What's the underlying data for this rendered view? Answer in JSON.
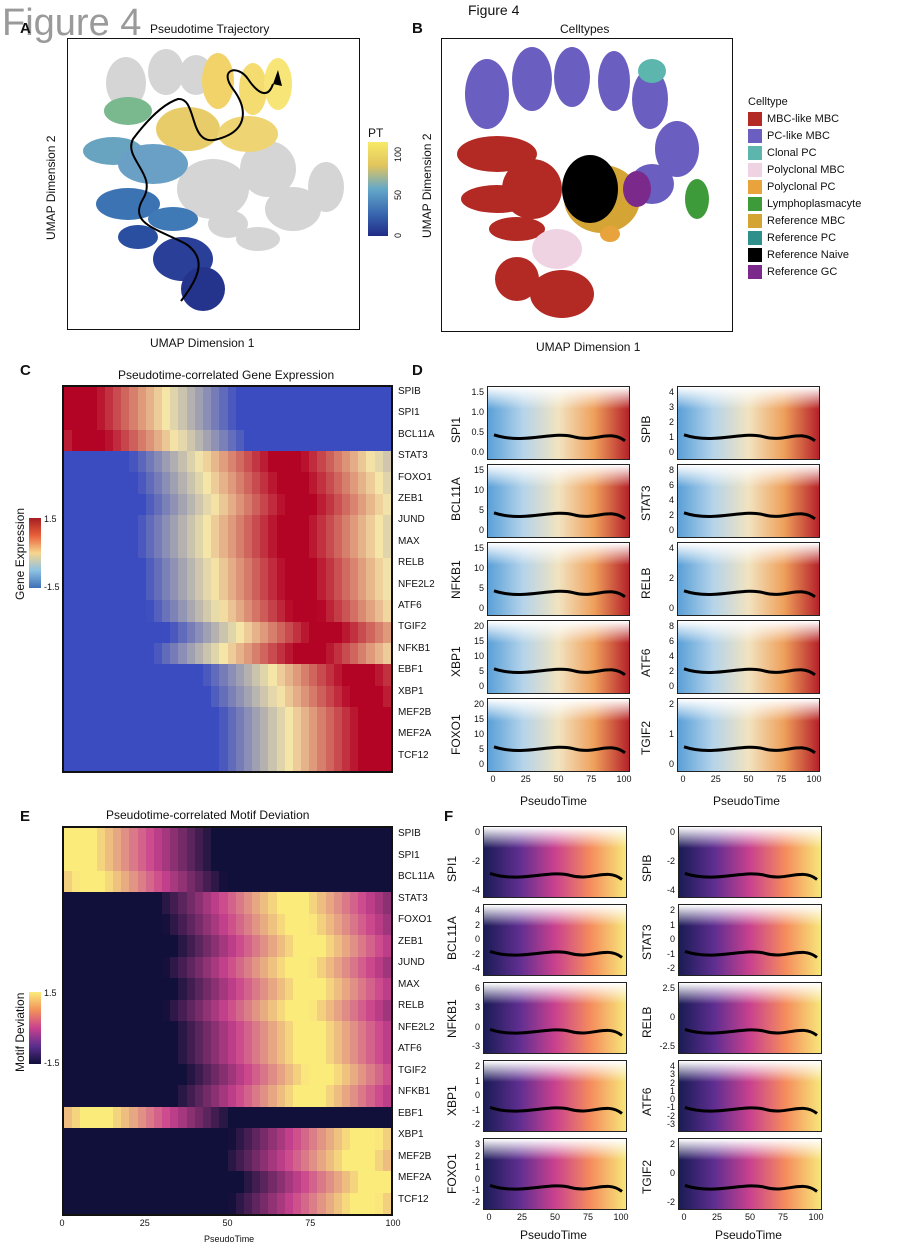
{
  "figure": {
    "watermark": "Figure 4",
    "title": "Figure 4"
  },
  "panel_a": {
    "letter": "A",
    "title": "Pseudotime Trajectory",
    "xlabel": "UMAP Dimension 1",
    "ylabel": "UMAP Dimension 2",
    "colorbar_title": "PT",
    "colorbar_ticks": [
      "100",
      "50",
      "0"
    ]
  },
  "panel_b": {
    "letter": "B",
    "title": "Celltypes",
    "xlabel": "UMAP Dimension 1",
    "ylabel": "UMAP Dimension 2",
    "legend_title": "Celltype",
    "legend": [
      {
        "label": "MBC-like MBC",
        "color": "#b32a24"
      },
      {
        "label": "PC-like MBC",
        "color": "#6a5fc0"
      },
      {
        "label": "Clonal PC",
        "color": "#5db6ad"
      },
      {
        "label": "Polyclonal MBC",
        "color": "#efd3e2"
      },
      {
        "label": "Polyclonal PC",
        "color": "#e8a33c"
      },
      {
        "label": "Lymphoplasmacyte",
        "color": "#3e9b3a"
      },
      {
        "label": "Reference MBC",
        "color": "#d4a534"
      },
      {
        "label": "Reference PC",
        "color": "#2f8f8a"
      },
      {
        "label": "Reference Naive",
        "color": "#000000"
      },
      {
        "label": "Reference GC",
        "color": "#7b2a8c"
      }
    ]
  },
  "panel_c": {
    "letter": "C",
    "title": "Pseudotime-correlated Gene Expression",
    "colorbar_title": "Gene Expression",
    "colorbar_ticks": [
      "1.5",
      "-1.5"
    ],
    "genes": [
      "SPIB",
      "SPI1",
      "BCL11A",
      "STAT3",
      "FOXO1",
      "ZEB1",
      "JUND",
      "MAX",
      "RELB",
      "NFE2L2",
      "ATF6",
      "TGIF2",
      "NFKB1",
      "EBF1",
      "XBP1",
      "MEF2B",
      "MEF2A",
      "TCF12"
    ]
  },
  "panel_d": {
    "letter": "D",
    "xlabel": "PseudoTime",
    "xticks": [
      "0",
      "25",
      "50",
      "75",
      "100"
    ],
    "left_col": [
      {
        "gene": "SPI1",
        "yticks": [
          "1.5",
          "1.0",
          "0.5",
          "0.0"
        ]
      },
      {
        "gene": "BCL11A",
        "yticks": [
          "15",
          "10",
          "5",
          "0"
        ]
      },
      {
        "gene": "NFKB1",
        "yticks": [
          "15",
          "10",
          "5",
          "0"
        ]
      },
      {
        "gene": "XBP1",
        "yticks": [
          "20",
          "15",
          "10",
          "5",
          "0"
        ]
      },
      {
        "gene": "FOXO1",
        "yticks": [
          "20",
          "15",
          "10",
          "5",
          "0"
        ]
      }
    ],
    "right_col": [
      {
        "gene": "SPIB",
        "yticks": [
          "4",
          "3",
          "2",
          "1",
          "0"
        ]
      },
      {
        "gene": "STAT3",
        "yticks": [
          "8",
          "6",
          "4",
          "2",
          "0"
        ]
      },
      {
        "gene": "RELB",
        "yticks": [
          "4",
          "2",
          "0"
        ]
      },
      {
        "gene": "ATF6",
        "yticks": [
          "8",
          "6",
          "4",
          "2",
          "0"
        ]
      },
      {
        "gene": "TGIF2",
        "yticks": [
          "2",
          "1",
          "0"
        ]
      }
    ]
  },
  "panel_e": {
    "letter": "E",
    "title": "Pseudotime-correlated Motif Deviation",
    "colorbar_title": "Motif Deviation",
    "colorbar_ticks": [
      "1.5",
      "-1.5"
    ],
    "xlabel": "PseudoTime",
    "xticks": [
      "0",
      "25",
      "50",
      "75",
      "100"
    ],
    "genes": [
      "SPIB",
      "SPI1",
      "BCL11A",
      "STAT3",
      "FOXO1",
      "ZEB1",
      "JUND",
      "MAX",
      "RELB",
      "NFE2L2",
      "ATF6",
      "TGIF2",
      "NFKB1",
      "EBF1",
      "XBP1",
      "MEF2B",
      "MEF2A",
      "TCF12"
    ]
  },
  "panel_f": {
    "letter": "F",
    "xlabel": "PseudoTime",
    "xticks": [
      "0",
      "25",
      "50",
      "75",
      "100"
    ],
    "left_col": [
      {
        "gene": "SPI1",
        "yticks": [
          "0",
          "-2",
          "-4"
        ]
      },
      {
        "gene": "BCL11A",
        "yticks": [
          "4",
          "2",
          "0",
          "-2",
          "-4"
        ]
      },
      {
        "gene": "NFKB1",
        "yticks": [
          "6",
          "3",
          "0",
          "-3"
        ]
      },
      {
        "gene": "XBP1",
        "yticks": [
          "2",
          "1",
          "0",
          "-1",
          "-2"
        ]
      },
      {
        "gene": "FOXO1",
        "yticks": [
          "3",
          "2",
          "1",
          "0",
          "-1",
          "-2"
        ]
      }
    ],
    "right_col": [
      {
        "gene": "SPIB",
        "yticks": [
          "0",
          "-2",
          "-4"
        ]
      },
      {
        "gene": "STAT3",
        "yticks": [
          "2",
          "1",
          "0",
          "-1",
          "-2"
        ]
      },
      {
        "gene": "RELB",
        "yticks": [
          "2.5",
          "0",
          "-2.5"
        ]
      },
      {
        "gene": "ATF6",
        "yticks": [
          "4",
          "3",
          "2",
          "1",
          "0",
          "-1",
          "-2",
          "-3"
        ]
      },
      {
        "gene": "TGIF2",
        "yticks": [
          "2",
          "0",
          "-2"
        ]
      }
    ]
  },
  "colors": {
    "heat_low": "#3b4cc0",
    "heat_mid": "#f5e6a8",
    "heat_high": "#b40426",
    "motif_low": "#10103a",
    "motif_mid": "#c9418e",
    "motif_high": "#fbeb7b",
    "umap_grey": "#d6d6d6"
  }
}
